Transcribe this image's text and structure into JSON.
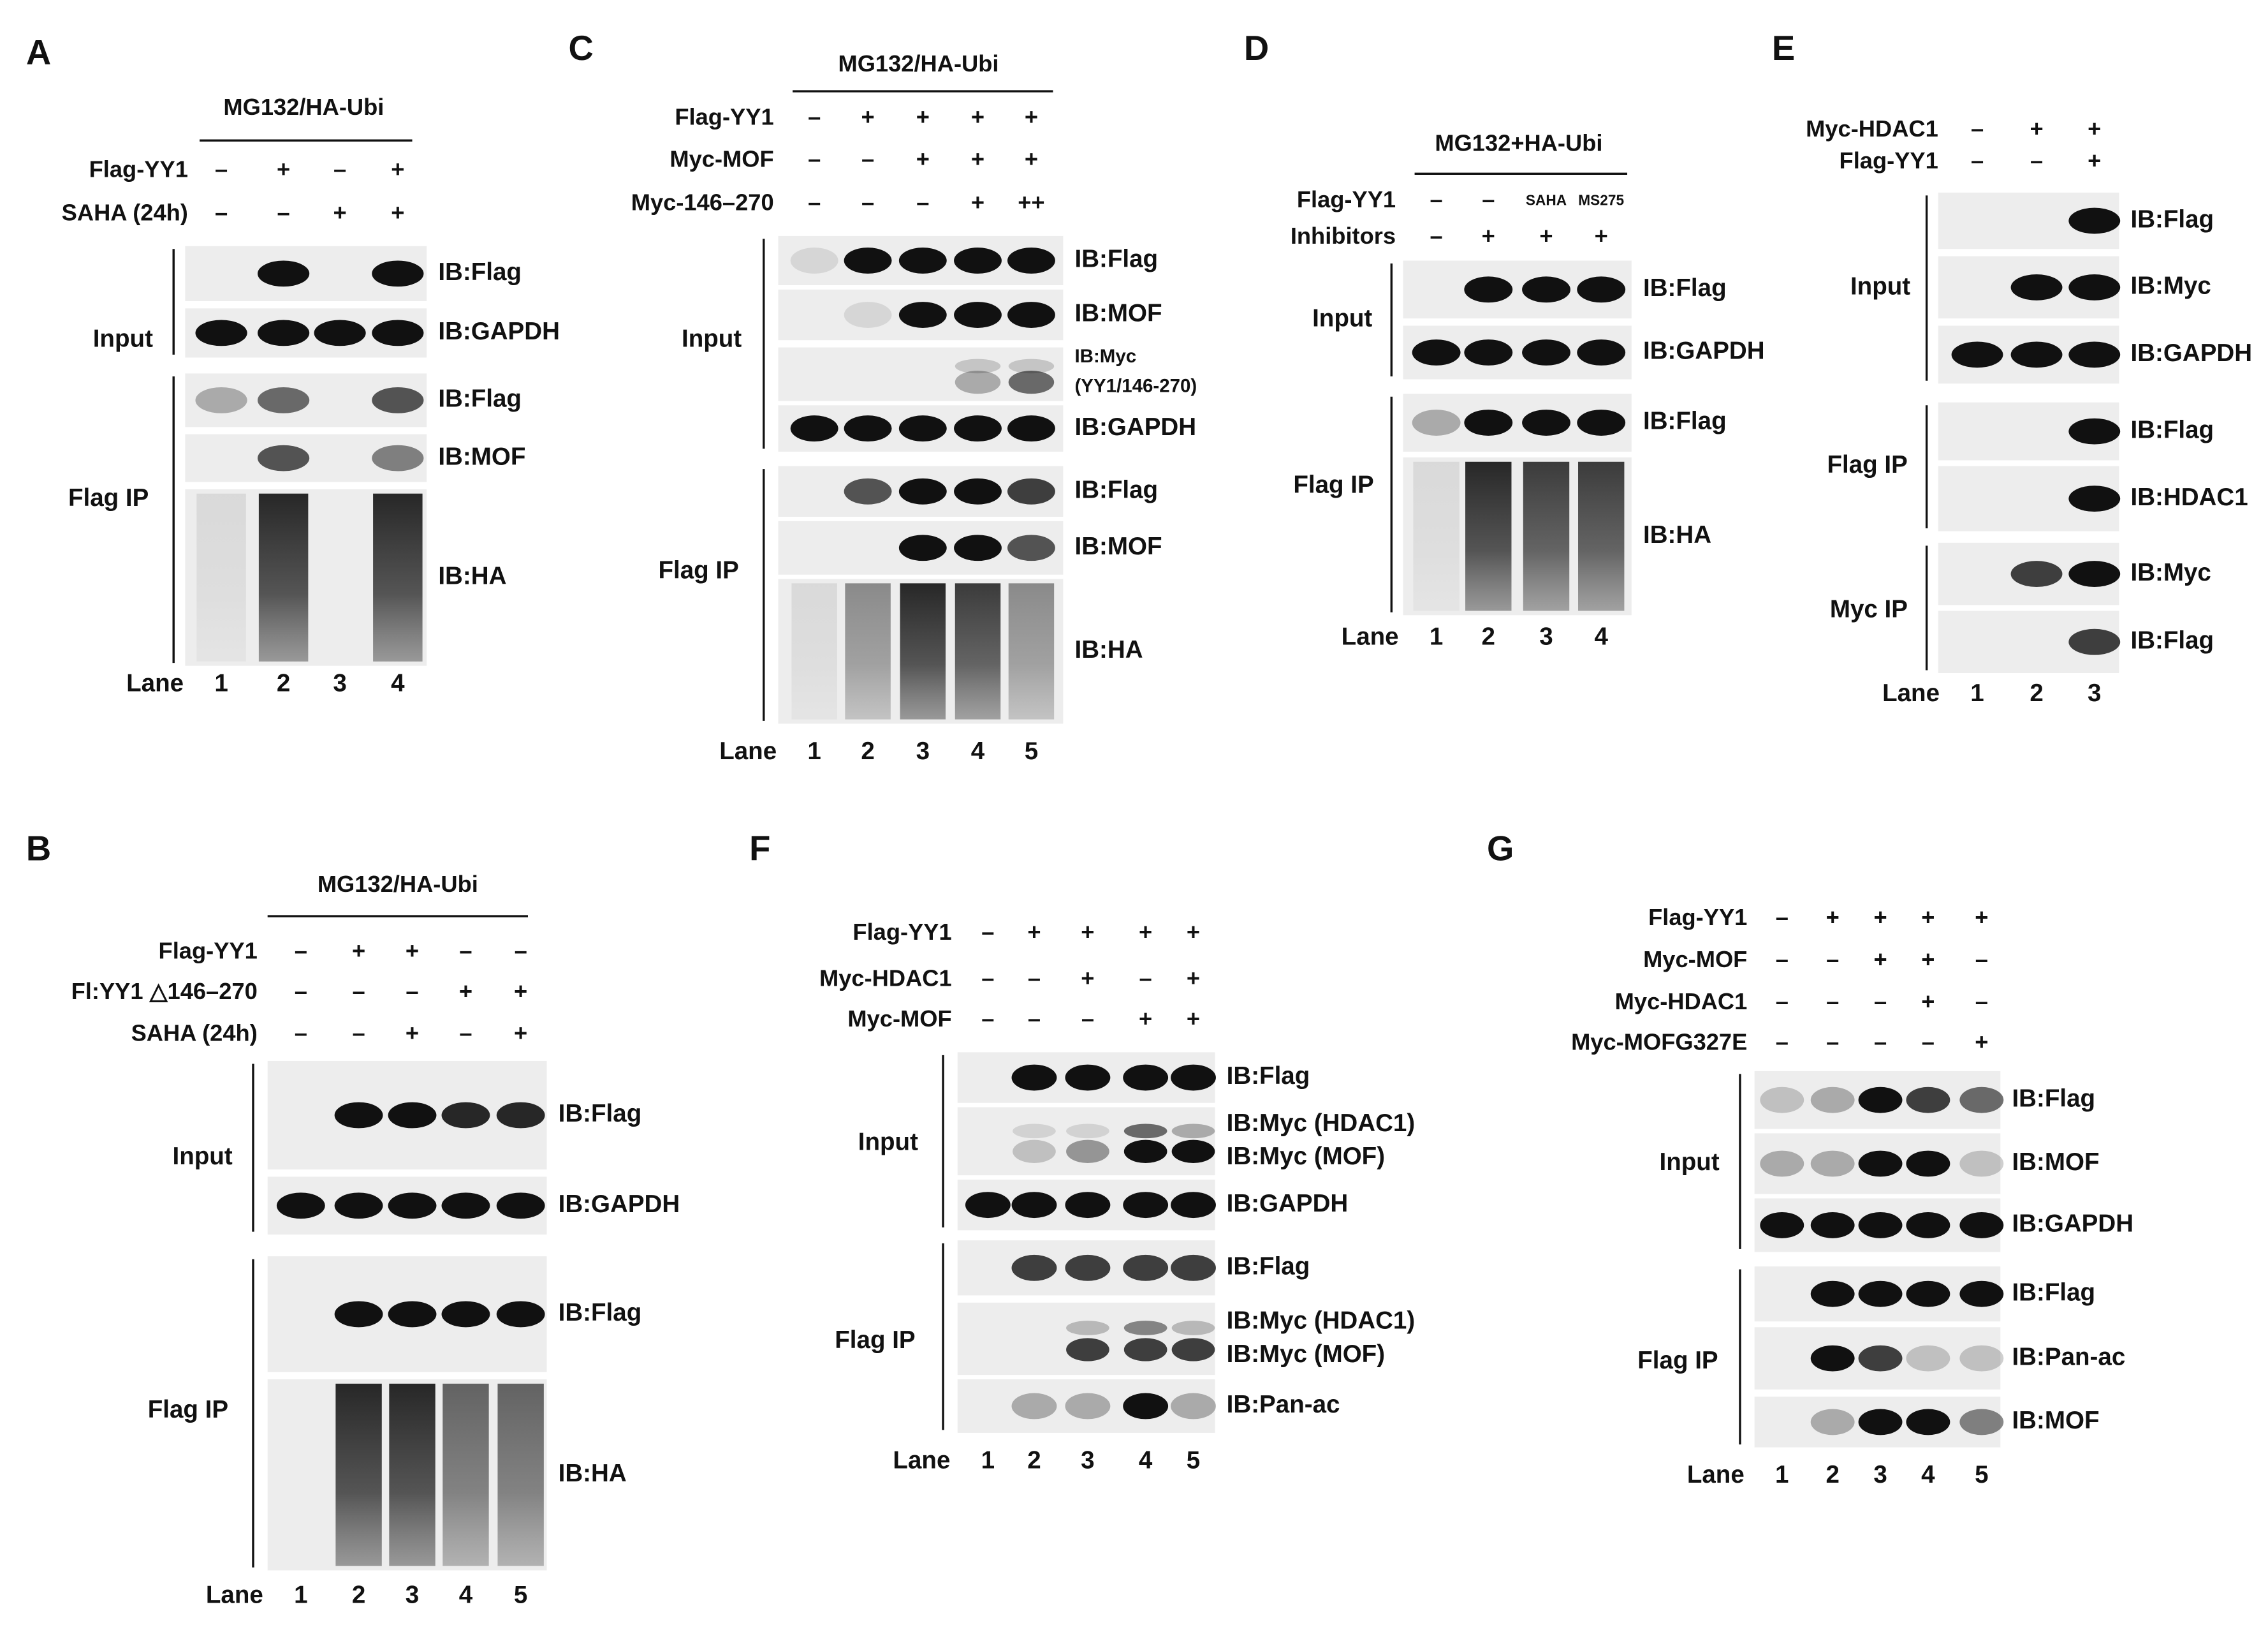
{
  "panels": [
    {
      "letter": "A",
      "header": "MG132/HA-Ubi",
      "conditions": [
        {
          "label": "Flag-YY1",
          "values": [
            "–",
            "+",
            "–",
            "+"
          ]
        },
        {
          "label": "SAHA (24h)",
          "values": [
            "–",
            "–",
            "+",
            "+"
          ]
        }
      ],
      "groups": [
        {
          "label": "Input",
          "blots": [
            {
              "labels": [
                "IB:Flag"
              ]
            },
            {
              "labels": [
                "IB:GAPDH"
              ]
            }
          ]
        },
        {
          "label": "Flag IP",
          "blots": [
            {
              "labels": [
                "IB:Flag"
              ]
            },
            {
              "labels": [
                "IB:MOF"
              ]
            },
            {
              "labels": [
                "IB:HA"
              ]
            }
          ]
        }
      ],
      "lane_label": "Lane",
      "lanes": [
        "1",
        "2",
        "3",
        "4"
      ]
    },
    {
      "letter": "B",
      "header": "MG132/HA-Ubi",
      "conditions": [
        {
          "label": "Flag-YY1",
          "values": [
            "–",
            "+",
            "+",
            "–",
            "–"
          ]
        },
        {
          "label": "Fl:YY1 △146–270",
          "values": [
            "–",
            "–",
            "–",
            "+",
            "+"
          ]
        },
        {
          "label": "SAHA (24h)",
          "values": [
            "–",
            "–",
            "+",
            "–",
            "+"
          ]
        }
      ],
      "groups": [
        {
          "label": "Input",
          "blots": [
            {
              "labels": [
                "IB:Flag"
              ]
            },
            {
              "labels": [
                "IB:GAPDH"
              ]
            }
          ]
        },
        {
          "label": "Flag IP",
          "blots": [
            {
              "labels": [
                "IB:Flag"
              ]
            },
            {
              "labels": [
                "IB:HA"
              ]
            }
          ]
        }
      ],
      "lane_label": "Lane",
      "lanes": [
        "1",
        "2",
        "3",
        "4",
        "5"
      ]
    },
    {
      "letter": "C",
      "header": "MG132/HA-Ubi",
      "conditions": [
        {
          "label": "Flag-YY1",
          "values": [
            "–",
            "+",
            "+",
            "+",
            "+"
          ]
        },
        {
          "label": "Myc-MOF",
          "values": [
            "–",
            "–",
            "+",
            "+",
            "+"
          ]
        },
        {
          "label": "Myc-146–270",
          "values": [
            "–",
            "–",
            "–",
            "+",
            "++"
          ]
        }
      ],
      "groups": [
        {
          "label": "Input",
          "blots": [
            {
              "labels": [
                "IB:Flag"
              ]
            },
            {
              "labels": [
                "IB:MOF"
              ]
            },
            {
              "labels": [
                "IB:Myc",
                "(YY1/146-270)"
              ]
            },
            {
              "labels": [
                "IB:GAPDH"
              ]
            }
          ]
        },
        {
          "label": "Flag IP",
          "blots": [
            {
              "labels": [
                "IB:Flag"
              ]
            },
            {
              "labels": [
                "IB:MOF"
              ]
            },
            {
              "labels": [
                "IB:HA"
              ]
            }
          ]
        }
      ],
      "lane_label": "Lane",
      "lanes": [
        "1",
        "2",
        "3",
        "4",
        "5"
      ]
    },
    {
      "letter": "D",
      "header": "MG132+HA-Ubi",
      "conditions": [
        {
          "label": "Flag-YY1",
          "values": [
            "–",
            "–",
            "SAHA",
            "MS275"
          ]
        },
        {
          "label": "Inhibitors",
          "values": [
            "–",
            "+",
            "+",
            "+"
          ]
        }
      ],
      "groups": [
        {
          "label": "Input",
          "blots": [
            {
              "labels": [
                "IB:Flag"
              ]
            },
            {
              "labels": [
                "IB:GAPDH"
              ]
            }
          ]
        },
        {
          "label": "Flag IP",
          "blots": [
            {
              "labels": [
                "IB:Flag"
              ]
            },
            {
              "labels": [
                "IB:HA"
              ]
            }
          ]
        }
      ],
      "lane_label": "Lane",
      "lanes": [
        "1",
        "2",
        "3",
        "4"
      ]
    },
    {
      "letter": "E",
      "conditions": [
        {
          "label": "Myc-HDAC1",
          "values": [
            "–",
            "+",
            "+"
          ]
        },
        {
          "label": "Flag-YY1",
          "values": [
            "–",
            "–",
            "+"
          ]
        }
      ],
      "groups": [
        {
          "label": "Input",
          "blots": [
            {
              "labels": [
                "IB:Flag"
              ]
            },
            {
              "labels": [
                "IB:Myc"
              ]
            },
            {
              "labels": [
                "IB:GAPDH"
              ]
            }
          ]
        },
        {
          "label": "Flag IP",
          "blots": [
            {
              "labels": [
                "IB:Flag"
              ]
            },
            {
              "labels": [
                "IB:HDAC1"
              ]
            }
          ]
        },
        {
          "label": "Myc IP",
          "blots": [
            {
              "labels": [
                "IB:Myc"
              ]
            },
            {
              "labels": [
                "IB:Flag"
              ]
            }
          ]
        }
      ],
      "lane_label": "Lane",
      "lanes": [
        "1",
        "2",
        "3"
      ]
    },
    {
      "letter": "F",
      "conditions": [
        {
          "label": "Flag-YY1",
          "values": [
            "–",
            "+",
            "+",
            "+",
            "+"
          ]
        },
        {
          "label": "Myc-HDAC1",
          "values": [
            "–",
            "–",
            "+",
            "–",
            "+"
          ]
        },
        {
          "label": "Myc-MOF",
          "values": [
            "–",
            "–",
            "–",
            "+",
            "+"
          ]
        }
      ],
      "groups": [
        {
          "label": "Input",
          "blots": [
            {
              "labels": [
                "IB:Flag"
              ]
            },
            {
              "labels": [
                "IB:Myc (HDAC1)",
                "IB:Myc (MOF)"
              ]
            },
            {
              "labels": [
                "IB:GAPDH"
              ]
            }
          ]
        },
        {
          "label": "Flag IP",
          "blots": [
            {
              "labels": [
                "IB:Flag"
              ]
            },
            {
              "labels": [
                "IB:Myc (HDAC1)",
                "IB:Myc (MOF)"
              ]
            },
            {
              "labels": [
                "IB:Pan-ac"
              ]
            }
          ]
        }
      ],
      "lane_label": "Lane",
      "lanes": [
        "1",
        "2",
        "3",
        "4",
        "5"
      ]
    },
    {
      "letter": "G",
      "conditions": [
        {
          "label": "Flag-YY1",
          "values": [
            "–",
            "+",
            "+",
            "+",
            "+"
          ]
        },
        {
          "label": "Myc-MOF",
          "values": [
            "–",
            "–",
            "+",
            "+",
            "–"
          ]
        },
        {
          "label": "Myc-HDAC1",
          "values": [
            "–",
            "–",
            "–",
            "+",
            "–"
          ]
        },
        {
          "label": "Myc-MOFG327E",
          "values": [
            "–",
            "–",
            "–",
            "–",
            "+"
          ]
        }
      ],
      "groups": [
        {
          "label": "Input",
          "blots": [
            {
              "labels": [
                "IB:Flag"
              ]
            },
            {
              "labels": [
                "IB:MOF"
              ]
            },
            {
              "labels": [
                "IB:GAPDH"
              ]
            }
          ]
        },
        {
          "label": "Flag IP",
          "blots": [
            {
              "labels": [
                "IB:Flag"
              ]
            },
            {
              "labels": [
                "IB:Pan-ac"
              ]
            },
            {
              "labels": [
                "IB:MOF"
              ]
            }
          ]
        }
      ],
      "lane_label": "Lane",
      "lanes": [
        "1",
        "2",
        "3",
        "4",
        "5"
      ]
    }
  ]
}
